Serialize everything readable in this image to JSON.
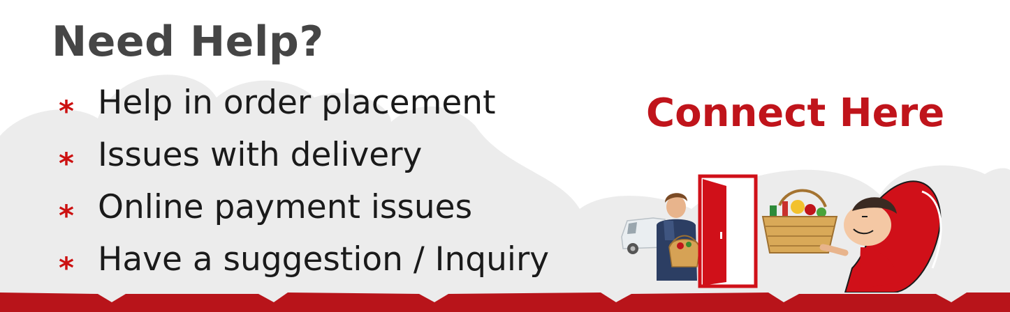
{
  "banner": {
    "title": "Need Help?",
    "items": [
      {
        "label": "Help in order placement"
      },
      {
        "label": "Issues with delivery"
      },
      {
        "label": "Online payment issues"
      },
      {
        "label": "Have a suggestion / Inquiry"
      }
    ],
    "bullet_icon": "asterisk-icon",
    "cta_label": "Connect Here"
  },
  "colors": {
    "accent_red": "#c0141b",
    "title_gray": "#454545",
    "text_dark": "#1a1a1a",
    "cloud_gray": "#ececec"
  },
  "illustration": {
    "icons": [
      "delivery-van-icon",
      "delivery-man-icon",
      "red-door-icon",
      "grocery-basket-icon",
      "relaxed-customer-icon"
    ]
  }
}
